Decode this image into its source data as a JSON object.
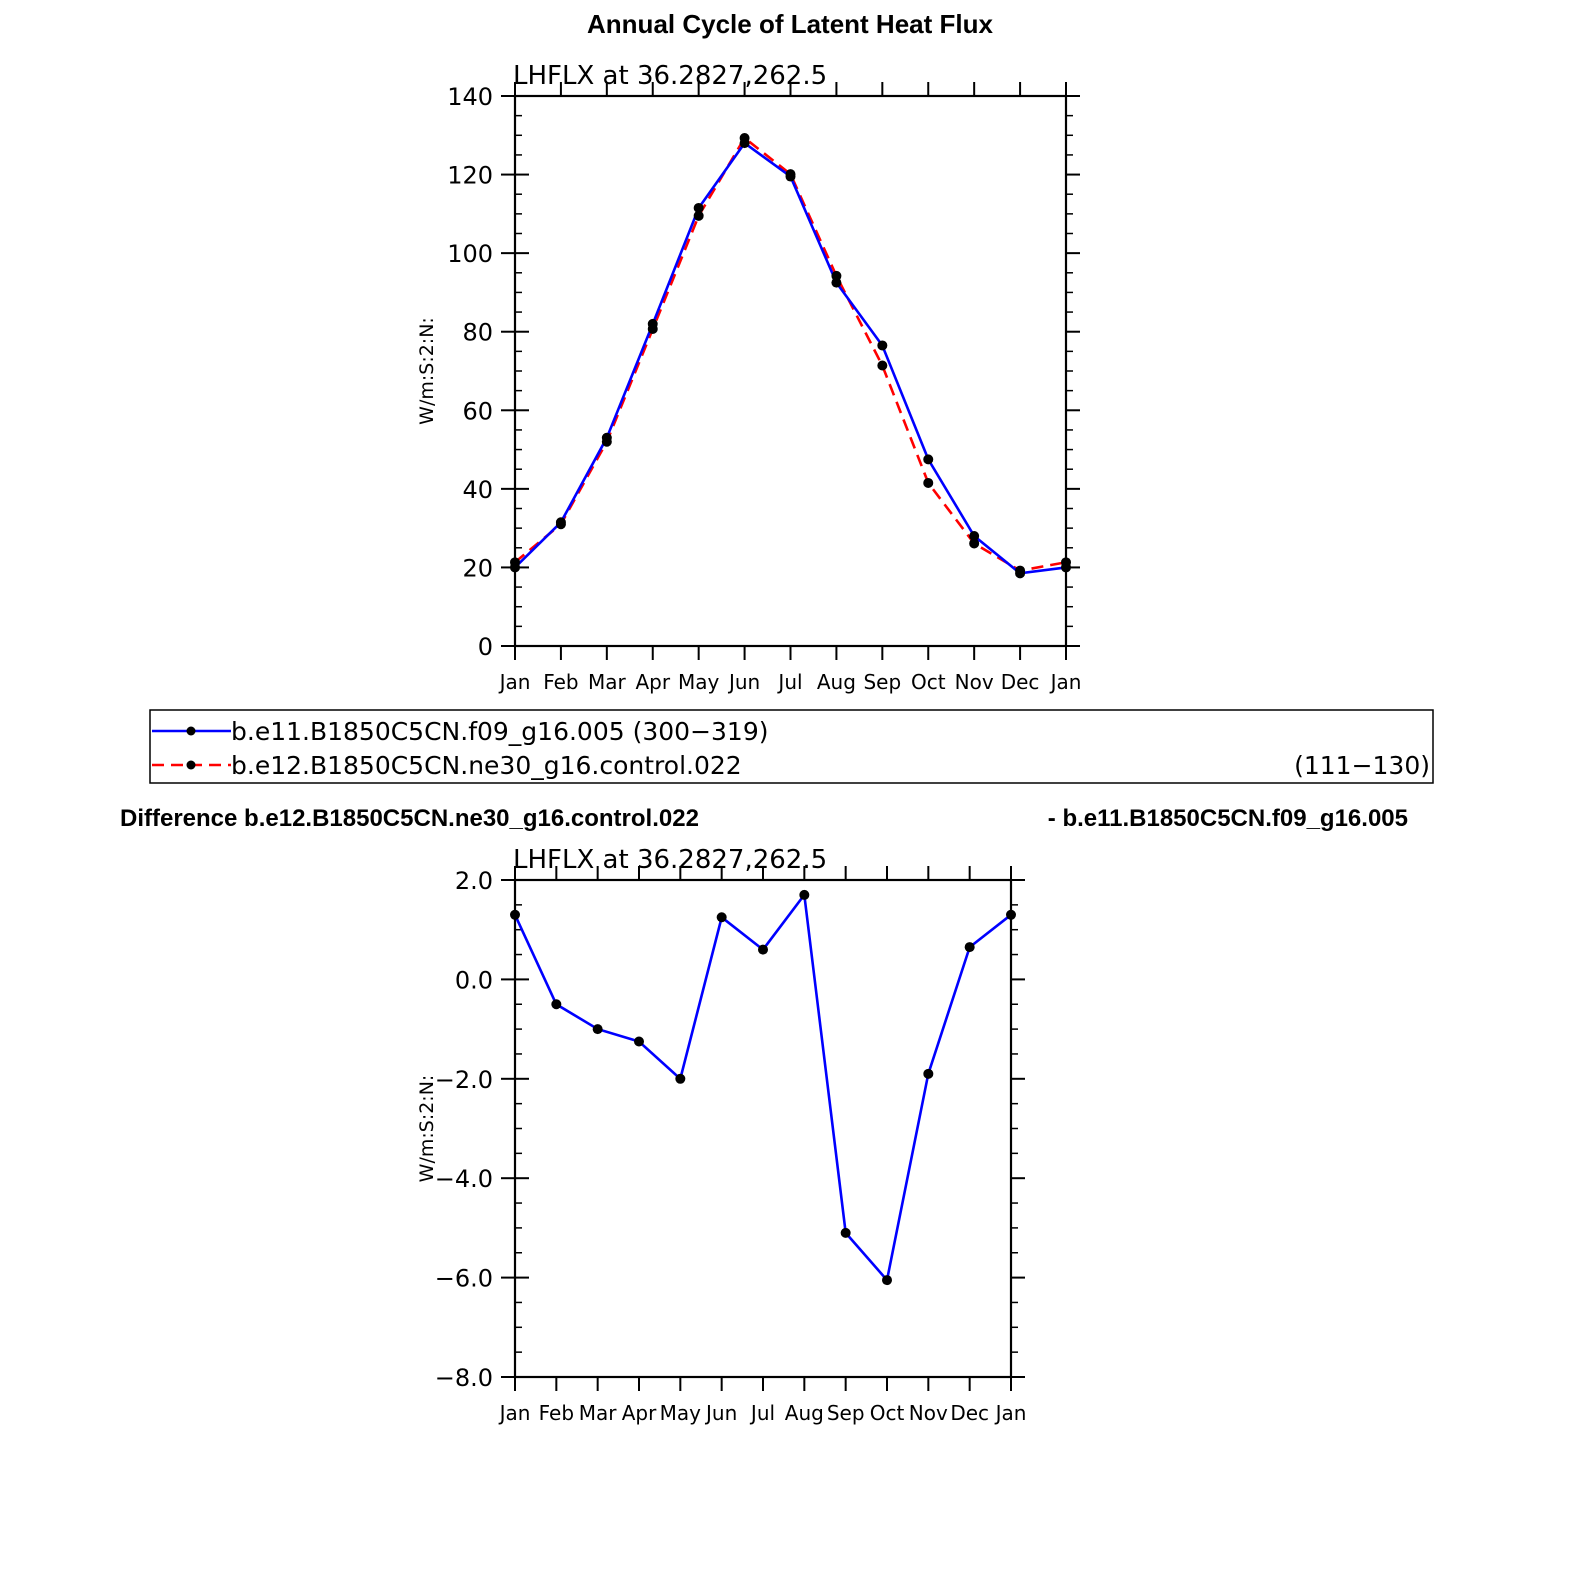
{
  "page_title": "Annual Cycle of Latent Heat Flux",
  "difference_title_left": "Difference b.e12.B1850C5CN.ne30_g16.control.022",
  "difference_title_right": "- b.e11.B1850C5CN.f09_g16.005",
  "legend": {
    "entries": [
      {
        "label": "b.e11.B1850C5CN.f09_g16.005 (300−319)",
        "right_label": "",
        "color": "#0000ff",
        "dash": "solid"
      },
      {
        "label": "b.e12.B1850C5CN.ne30_g16.control.022",
        "right_label": "(111−130)",
        "color": "#ff0000",
        "dash": "dashed"
      }
    ]
  },
  "chart_data": [
    {
      "type": "line",
      "subtitle": "LHFLX  at  36.2827,262.5",
      "ylabel": "W/m:S:2:N:",
      "xlabel": "",
      "categories": [
        "Jan",
        "Feb",
        "Mar",
        "Apr",
        "May",
        "Jun",
        "Jul",
        "Aug",
        "Sep",
        "Oct",
        "Nov",
        "Dec",
        "Jan"
      ],
      "ylim": [
        0,
        140
      ],
      "yticks": [
        "0",
        "20",
        "40",
        "60",
        "80",
        "100",
        "120",
        "140"
      ],
      "series": [
        {
          "color": "#0000ff",
          "dash": "solid",
          "values": [
            20.0,
            31.5,
            53.0,
            82.0,
            111.5,
            128.0,
            119.5,
            92.5,
            76.5,
            47.5,
            28.0,
            18.5,
            20.0
          ]
        },
        {
          "color": "#ff0000",
          "dash": "dashed",
          "values": [
            21.3,
            31.0,
            52.0,
            80.7,
            109.5,
            129.3,
            120.1,
            94.2,
            71.4,
            41.5,
            26.1,
            19.2,
            21.3
          ]
        }
      ]
    },
    {
      "type": "line",
      "subtitle": "LHFLX  at  36.2827,262.5",
      "ylabel": "W/m:S:2:N:",
      "xlabel": "",
      "categories": [
        "Jan",
        "Feb",
        "Mar",
        "Apr",
        "May",
        "Jun",
        "Jul",
        "Aug",
        "Sep",
        "Oct",
        "Nov",
        "Dec",
        "Jan"
      ],
      "ylim": [
        -8,
        2
      ],
      "yticks": [
        "−8.0",
        "−6.0",
        "−4.0",
        "−2.0",
        "0.0",
        "2.0"
      ],
      "series": [
        {
          "color": "#0000ff",
          "dash": "solid",
          "values": [
            1.3,
            -0.5,
            -1.0,
            -1.25,
            -2.0,
            1.25,
            0.6,
            1.7,
            -5.1,
            -6.05,
            -1.9,
            0.65,
            1.3
          ]
        }
      ]
    }
  ]
}
